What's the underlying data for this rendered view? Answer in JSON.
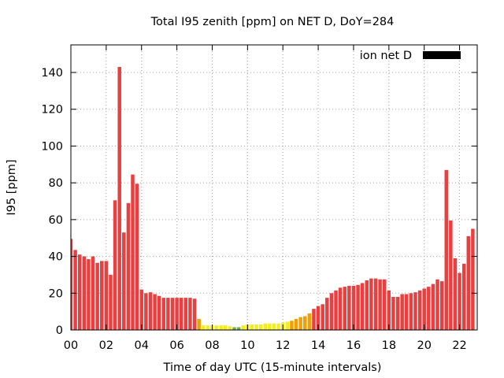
{
  "chart_data": {
    "type": "bar",
    "title": "Total I95 zenith [ppm] on NET D, DoY=284",
    "xlabel": "Time of day UTC (15-minute intervals)",
    "ylabel": "I95 [ppm]",
    "xlim": [
      0,
      23
    ],
    "ylim": [
      0,
      155
    ],
    "xticks": [
      {
        "v": 0,
        "label": "00"
      },
      {
        "v": 2,
        "label": "02"
      },
      {
        "v": 4,
        "label": "04"
      },
      {
        "v": 6,
        "label": "06"
      },
      {
        "v": 8,
        "label": "08"
      },
      {
        "v": 10,
        "label": "10"
      },
      {
        "v": 12,
        "label": "12"
      },
      {
        "v": 14,
        "label": "14"
      },
      {
        "v": 16,
        "label": "16"
      },
      {
        "v": 18,
        "label": "18"
      },
      {
        "v": 20,
        "label": "20"
      },
      {
        "v": 22,
        "label": "22"
      }
    ],
    "yticks": [
      {
        "v": 0,
        "label": "0"
      },
      {
        "v": 20,
        "label": "20"
      },
      {
        "v": 40,
        "label": "40"
      },
      {
        "v": 60,
        "label": "60"
      },
      {
        "v": 80,
        "label": "80"
      },
      {
        "v": 100,
        "label": "100"
      },
      {
        "v": 120,
        "label": "120"
      },
      {
        "v": 140,
        "label": "140"
      }
    ],
    "grid": true,
    "legend": {
      "label": "ion net D",
      "position": "top-right",
      "color": "#000000"
    },
    "bar_width": 0.2,
    "colors": {
      "high": "#e84040",
      "medium": "#f2a000",
      "low": "#f5ee1f",
      "very_low": "#6cb33f"
    },
    "series": [
      {
        "x": [
          0,
          0.25,
          0.5,
          0.75,
          1,
          1.25,
          1.5,
          1.75,
          2,
          2.25,
          2.5,
          2.75,
          3,
          3.25,
          3.5,
          3.75,
          4,
          4.25,
          4.5,
          4.75,
          5,
          5.25,
          5.5,
          5.75,
          6,
          6.25,
          6.5,
          6.75,
          7,
          7.25,
          7.5,
          7.75,
          8,
          8.25,
          8.5,
          8.75,
          9,
          9.25,
          9.5,
          9.75,
          10,
          10.25,
          10.5,
          10.75,
          11,
          11.25,
          11.5,
          11.75,
          12,
          12.25,
          12.5,
          12.75,
          13,
          13.25,
          13.5,
          13.75,
          14,
          14.25,
          14.5,
          14.75,
          15,
          15.25,
          15.5,
          15.75,
          16,
          16.25,
          16.5,
          16.75,
          17,
          17.25,
          17.5,
          17.75,
          18,
          18.25,
          18.5,
          18.75,
          19,
          19.25,
          19.5,
          19.75,
          20,
          20.25,
          20.5,
          20.75,
          21,
          21.25,
          21.5,
          21.75,
          22,
          22.25,
          22.5,
          22.75
        ],
        "values": [
          49.5,
          43.5,
          41,
          40,
          38.5,
          40,
          36.5,
          37.5,
          37.5,
          30,
          70.5,
          143,
          53,
          69,
          84.5,
          79.5,
          22,
          20,
          20.5,
          19.5,
          18.5,
          17.5,
          17.5,
          17.5,
          17.5,
          17.5,
          17.5,
          17.5,
          17,
          6,
          2.5,
          2.5,
          2.5,
          2.5,
          2.5,
          2.5,
          2,
          1.5,
          1.5,
          2.5,
          3,
          3,
          3,
          3,
          3.5,
          3.5,
          3.5,
          3.5,
          4,
          4.5,
          5,
          6,
          7,
          7.5,
          9,
          11.5,
          13,
          14,
          17.5,
          20,
          21.5,
          23,
          23.5,
          24,
          24,
          24.5,
          25.5,
          27,
          28,
          28,
          27.5,
          27.5,
          21.5,
          18,
          18,
          19.5,
          19.5,
          20,
          20.5,
          21.5,
          22.5,
          23.5,
          25,
          27.5,
          26.5,
          87,
          59.5,
          39,
          31,
          36,
          51,
          55
        ]
      }
    ]
  }
}
